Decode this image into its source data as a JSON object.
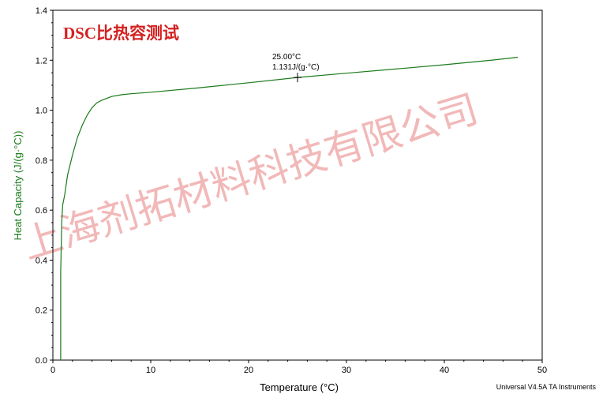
{
  "chart_data": {
    "type": "line",
    "title": "DSC比热容测试",
    "xlabel": "Temperature (°C)",
    "ylabel": "Heat Capacity (J/(g·°C))",
    "xlim": [
      0,
      50
    ],
    "ylim": [
      0.0,
      1.4
    ],
    "x_ticks": [
      0,
      10,
      20,
      30,
      40,
      50
    ],
    "x_tick_labels": [
      "0",
      "10",
      "20",
      "30",
      "40",
      "50"
    ],
    "y_ticks": [
      0.0,
      0.2,
      0.4,
      0.6,
      0.8,
      1.0,
      1.2,
      1.4
    ],
    "y_tick_labels": [
      "0.0",
      "0.2",
      "0.4",
      "0.6",
      "0.8",
      "1.0",
      "1.2",
      "1.4"
    ],
    "grid": false,
    "series": [
      {
        "color": "#1a7a1a",
        "x": [
          0.8,
          0.8,
          0.9,
          1.0,
          1.2,
          1.5,
          2.0,
          2.5,
          3.0,
          3.5,
          4.0,
          4.5,
          5.0,
          6.0,
          7.0,
          8.0,
          10.0,
          15.0,
          20.0,
          25.0,
          30.0,
          35.0,
          40.0,
          45.0,
          47.5
        ],
        "y": [
          0.0,
          0.35,
          0.55,
          0.62,
          0.66,
          0.74,
          0.82,
          0.89,
          0.94,
          0.98,
          1.01,
          1.03,
          1.04,
          1.055,
          1.062,
          1.066,
          1.072,
          1.09,
          1.11,
          1.131,
          1.148,
          1.165,
          1.182,
          1.201,
          1.212
        ]
      }
    ],
    "annotations": [
      {
        "x": 25.0,
        "y": 1.131,
        "label_line1": "25.00°C",
        "label_line2": "1.131J/(g·°C)",
        "marker": "cross"
      }
    ]
  },
  "watermark_text": "上海剂拓材料科技有限公司",
  "footer_text": "Universal V4.5A TA Instruments",
  "colors": {
    "curve": "#1a7a1a",
    "ylabel": "#1a7a1a",
    "title": "#d42020",
    "watermark": "#f2b8b8",
    "axis": "#000000"
  }
}
